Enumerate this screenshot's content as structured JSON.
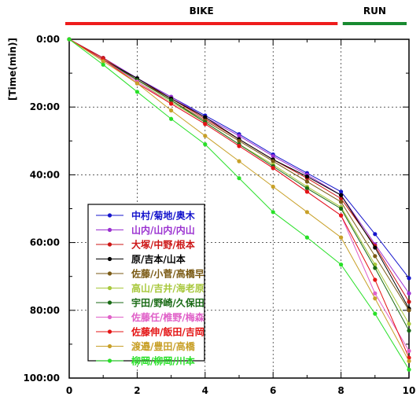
{
  "chart_data": {
    "type": "line",
    "title": "",
    "xlabel": "",
    "ylabel": "[Time(min)]",
    "y_inverted": true,
    "xlim": [
      0,
      10
    ],
    "ylim": [
      0,
      100
    ],
    "x_ticks": [
      "0",
      "2",
      "4",
      "6",
      "8",
      "10"
    ],
    "y_ticks": [
      "0:00",
      "20:00",
      "40:00",
      "60:00",
      "80:00",
      "100:00"
    ],
    "grid": true,
    "legend_placement": "lower-left",
    "phases": [
      {
        "label": "BIKE",
        "x_start": 0,
        "x_end": 7.9,
        "color": "#ee1c1c"
      },
      {
        "label": "RUN",
        "x_start": 8.05,
        "x_end": 10,
        "color": "#188a30"
      }
    ],
    "x": [
      0,
      1,
      2,
      3,
      4,
      5,
      6,
      7,
      8,
      9,
      10
    ],
    "series": [
      {
        "name": "中村/菊地/奥木",
        "color": "#1414cc",
        "values": [
          0,
          5.5,
          11.5,
          17,
          22.5,
          28,
          34,
          39.5,
          45,
          57.5,
          70.5
        ]
      },
      {
        "name": "山内/山内/内山",
        "color": "#9a30d0",
        "values": [
          0,
          5.5,
          11.5,
          17,
          23,
          28.5,
          34.5,
          40,
          46,
          60.5,
          75
        ]
      },
      {
        "name": "大塚/中野/根本",
        "color": "#cc1414",
        "values": [
          0,
          5.5,
          12,
          17.5,
          23.5,
          29.5,
          35.5,
          41,
          47,
          61,
          77.5
        ]
      },
      {
        "name": "原/吉本/山本",
        "color": "#000000",
        "values": [
          0,
          6,
          11.5,
          17.5,
          23,
          29.5,
          35.5,
          40.5,
          46,
          61.5,
          79.5
        ]
      },
      {
        "name": "佐藤/小菅/高橋早",
        "color": "#7a5a14",
        "values": [
          0,
          6,
          12,
          18,
          24,
          30,
          36,
          42,
          48,
          64,
          80
        ]
      },
      {
        "name": "高山/吉井/海老原",
        "color": "#a8c83c",
        "values": [
          0,
          6,
          12.5,
          18.5,
          24.5,
          31,
          37,
          43.5,
          49.5,
          66.5,
          84
        ]
      },
      {
        "name": "宇田/野崎/久保田",
        "color": "#186a14",
        "values": [
          0,
          6,
          12,
          18,
          24.5,
          31,
          37.5,
          44,
          50,
          67.5,
          86
        ]
      },
      {
        "name": "佐藤任/椎野/梅森",
        "color": "#e060c8",
        "values": [
          0,
          6,
          12.5,
          19,
          25,
          31.5,
          38,
          45,
          52,
          75,
          92
        ]
      },
      {
        "name": "佐藤伸/飯田/吉岡",
        "color": "#e41414",
        "values": [
          0,
          6,
          13,
          19,
          25,
          31.5,
          38,
          45,
          52,
          71,
          94
        ]
      },
      {
        "name": "渡邉/豊田/高橋",
        "color": "#c8a028",
        "values": [
          0,
          6.5,
          13,
          21,
          28.5,
          36,
          43.5,
          51,
          58.5,
          76.5,
          95
        ]
      },
      {
        "name": "柳岡/柳岡/川本",
        "color": "#28e028",
        "values": [
          0,
          7.5,
          15.5,
          23.5,
          31,
          41,
          51,
          58.5,
          66.5,
          81,
          97.5
        ]
      }
    ]
  }
}
